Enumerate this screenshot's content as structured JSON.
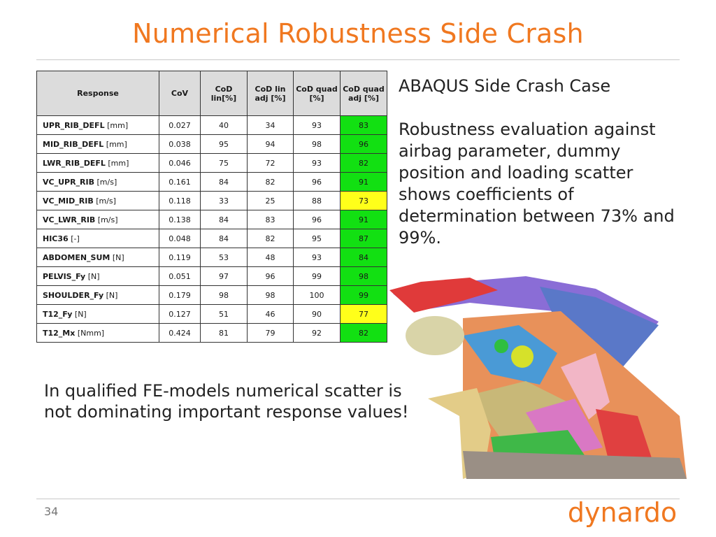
{
  "slide": {
    "title": "Numerical Robustness Side Crash",
    "page_number": "34",
    "logo_text": "dynardo"
  },
  "table": {
    "headers": [
      "Response",
      "CoV",
      "CoD lin[%]",
      "CoD lin adj [%]",
      "CoD quad [%]",
      "CoD quad adj [%]"
    ],
    "rows": [
      {
        "name": "UPR_RIB_DEFL",
        "unit": "[mm]",
        "cov": "0.027",
        "lin": "40",
        "lin_adj": "34",
        "quad": "93",
        "quad_adj": "83",
        "quad_adj_color": "green"
      },
      {
        "name": "MID_RIB_DEFL",
        "unit": "[mm]",
        "cov": "0.038",
        "lin": "95",
        "lin_adj": "94",
        "quad": "98",
        "quad_adj": "96",
        "quad_adj_color": "green"
      },
      {
        "name": "LWR_RIB_DEFL",
        "unit": "[mm]",
        "cov": "0.046",
        "lin": "75",
        "lin_adj": "72",
        "quad": "93",
        "quad_adj": "82",
        "quad_adj_color": "green"
      },
      {
        "name": "VC_UPR_RIB",
        "unit": "[m/s]",
        "cov": "0.161",
        "lin": "84",
        "lin_adj": "82",
        "quad": "96",
        "quad_adj": "91",
        "quad_adj_color": "green"
      },
      {
        "name": "VC_MID_RIB",
        "unit": "[m/s]",
        "cov": "0.118",
        "lin": "33",
        "lin_adj": "25",
        "quad": "88",
        "quad_adj": "73",
        "quad_adj_color": "yellow"
      },
      {
        "name": "VC_LWR_RIB",
        "unit": "[m/s]",
        "cov": "0.138",
        "lin": "84",
        "lin_adj": "83",
        "quad": "96",
        "quad_adj": "91",
        "quad_adj_color": "green"
      },
      {
        "name": "HIC36",
        "unit": "[-]",
        "cov": "0.048",
        "lin": "84",
        "lin_adj": "82",
        "quad": "95",
        "quad_adj": "87",
        "quad_adj_color": "green"
      },
      {
        "name": "ABDOMEN_SUM",
        "unit": "[N]",
        "cov": "0.119",
        "lin": "53",
        "lin_adj": "48",
        "quad": "93",
        "quad_adj": "84",
        "quad_adj_color": "green"
      },
      {
        "name": "PELVIS_Fy",
        "unit": "[N]",
        "cov": "0.051",
        "lin": "97",
        "lin_adj": "96",
        "quad": "99",
        "quad_adj": "98",
        "quad_adj_color": "green"
      },
      {
        "name": "SHOULDER_Fy",
        "unit": "[N]",
        "cov": "0.179",
        "lin": "98",
        "lin_adj": "98",
        "quad": "100",
        "quad_adj": "99",
        "quad_adj_color": "green"
      },
      {
        "name": "T12_Fy",
        "unit": "[N]",
        "cov": "0.127",
        "lin": "51",
        "lin_adj": "46",
        "quad": "90",
        "quad_adj": "77",
        "quad_adj_color": "yellow"
      },
      {
        "name": "T12_Mx",
        "unit": "[Nmm]",
        "cov": "0.424",
        "lin": "81",
        "lin_adj": "79",
        "quad": "92",
        "quad_adj": "82",
        "quad_adj_color": "green"
      }
    ]
  },
  "right_text": {
    "heading": "ABAQUS Side Crash Case",
    "body": "Robustness evaluation against airbag parameter, dummy position and loading scatter shows coefficients of determination between 73% and 99%."
  },
  "bottom_text": "In qualified FE-models numerical scatter is not dominating important response values!",
  "colors": {
    "accent": "#f07820",
    "good": "#12e012",
    "warn": "#ffff1a"
  }
}
